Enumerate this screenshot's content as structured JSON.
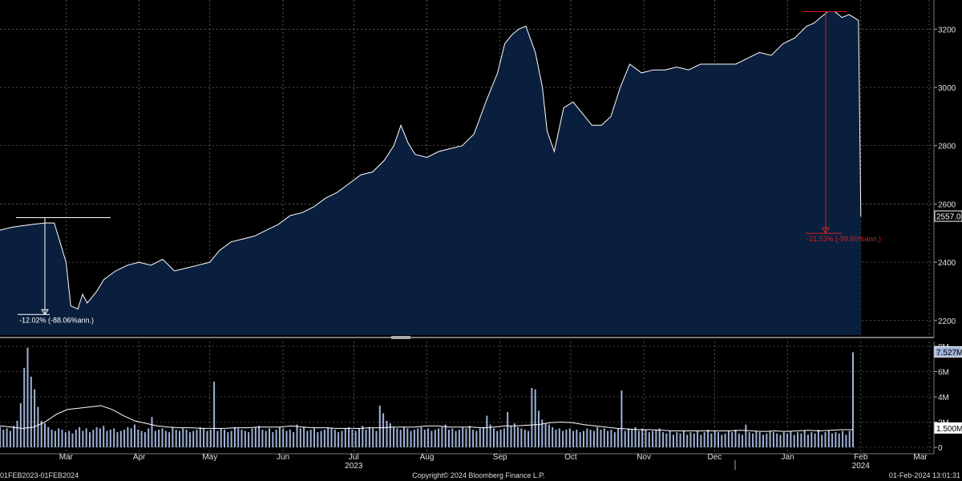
{
  "colors": {
    "background": "#000000",
    "area_fill": "#0a1f3d",
    "price_line": "#ffffff",
    "volume_bar": "#9fb2d8",
    "grid": "#8a8a8a",
    "axis_text": "#e0e0e0",
    "drawdown_red": "#d42020",
    "drawdown_white": "#ffffff"
  },
  "footer": {
    "range": "01FEB2023-01FEB2024",
    "copyright": "Copyright© 2024 Bloomberg Finance L.P.",
    "timestamp": "01-Feb-2024 13:01:31"
  },
  "chart_data": [
    {
      "type": "area",
      "ylim": [
        2150,
        3300
      ],
      "y_ticks": [
        "2200",
        "2400",
        "2600",
        "2800",
        "3000",
        "3200"
      ],
      "last_value_label": "2557.0",
      "x": [
        "2023-02-01",
        "2023-02-06",
        "2023-02-10",
        "2023-02-15",
        "2023-02-20",
        "2023-02-24",
        "2023-03-01",
        "2023-03-03",
        "2023-03-06",
        "2023-03-08",
        "2023-03-10",
        "2023-03-14",
        "2023-03-17",
        "2023-03-22",
        "2023-03-27",
        "2023-04-01",
        "2023-04-06",
        "2023-04-11",
        "2023-04-16",
        "2023-04-21",
        "2023-04-26",
        "2023-05-01",
        "2023-05-05",
        "2023-05-10",
        "2023-05-15",
        "2023-05-20",
        "2023-05-25",
        "2023-05-30",
        "2023-06-04",
        "2023-06-09",
        "2023-06-14",
        "2023-06-19",
        "2023-06-24",
        "2023-06-29",
        "2023-07-04",
        "2023-07-09",
        "2023-07-14",
        "2023-07-18",
        "2023-07-21",
        "2023-07-24",
        "2023-07-27",
        "2023-08-01",
        "2023-08-06",
        "2023-08-11",
        "2023-08-16",
        "2023-08-21",
        "2023-08-26",
        "2023-08-31",
        "2023-09-03",
        "2023-09-06",
        "2023-09-09",
        "2023-09-12",
        "2023-09-16",
        "2023-09-19",
        "2023-09-21",
        "2023-09-24",
        "2023-09-28",
        "2023-10-02",
        "2023-10-06",
        "2023-10-10",
        "2023-10-14",
        "2023-10-18",
        "2023-10-22",
        "2023-10-26",
        "2023-10-31",
        "2023-11-05",
        "2023-11-10",
        "2023-11-15",
        "2023-11-20",
        "2023-11-25",
        "2023-11-30",
        "2023-12-05",
        "2023-12-10",
        "2023-12-15",
        "2023-12-20",
        "2023-12-25",
        "2023-12-30",
        "2024-01-04",
        "2024-01-09",
        "2024-01-12",
        "2024-01-15",
        "2024-01-18",
        "2024-01-21",
        "2024-01-24",
        "2024-01-27",
        "2024-01-31",
        "2024-02-01"
      ],
      "values": [
        2510,
        2520,
        2525,
        2530,
        2535,
        2535,
        2400,
        2250,
        2240,
        2290,
        2260,
        2300,
        2340,
        2370,
        2390,
        2400,
        2390,
        2410,
        2370,
        2380,
        2390,
        2400,
        2440,
        2470,
        2480,
        2490,
        2510,
        2530,
        2560,
        2570,
        2590,
        2620,
        2640,
        2670,
        2700,
        2710,
        2750,
        2800,
        2870,
        2810,
        2770,
        2760,
        2780,
        2790,
        2800,
        2840,
        2950,
        3050,
        3150,
        3180,
        3200,
        3210,
        3120,
        3000,
        2850,
        2780,
        2930,
        2950,
        2910,
        2870,
        2870,
        2900,
        3000,
        3080,
        3050,
        3060,
        3060,
        3070,
        3060,
        3080,
        3080,
        3080,
        3080,
        3100,
        3120,
        3110,
        3150,
        3170,
        3210,
        3220,
        3240,
        3260,
        3260,
        3240,
        3250,
        3230,
        2557
      ]
    },
    {
      "type": "bar",
      "ylim": [
        0,
        8
      ],
      "y_ticks": [
        "8M",
        "6M",
        "4M",
        "2M",
        "0"
      ],
      "series": [
        {
          "values": [
            1.6,
            1.4,
            1.5,
            1.3,
            1.7,
            2.1,
            3.5,
            6.3,
            7.9,
            5.6,
            4.6,
            3.2,
            2.1,
            1.9,
            1.6,
            1.4,
            1.3,
            1.5,
            1.4,
            1.2,
            1.3,
            1.1,
            1.4,
            1.6,
            1.3,
            1.5,
            1.2,
            1.4,
            1.6,
            1.5,
            1.7,
            1.3,
            1.4,
            1.5,
            1.2,
            1.3,
            1.4,
            1.6,
            1.5,
            1.8,
            1.4,
            1.3,
            1.2,
            1.5,
            2.4,
            1.3,
            1.4,
            1.5,
            1.3,
            1.2,
            1.6,
            1.4,
            1.3,
            1.5,
            1.4,
            1.2,
            1.3,
            1.4,
            1.6,
            1.5,
            1.3,
            1.4,
            5.2,
            1.3,
            1.5,
            1.4,
            1.2,
            1.3,
            1.6,
            1.5,
            1.4,
            1.3,
            1.2,
            1.5,
            1.6,
            1.7,
            1.4,
            1.3,
            1.5,
            1.2,
            1.4,
            1.6,
            1.5,
            1.3,
            1.4,
            1.2,
            1.8,
            1.5,
            1.6,
            1.3,
            1.4,
            1.5,
            1.2,
            1.3,
            1.4,
            1.6,
            1.5,
            1.4,
            1.2,
            1.3,
            1.5,
            1.6,
            1.4,
            1.3,
            1.5,
            1.7,
            1.4,
            1.6,
            1.5,
            1.3,
            3.3,
            2.7,
            2.1,
            1.9,
            1.6,
            1.5,
            1.4,
            1.6,
            1.5,
            1.3,
            1.4,
            1.5,
            1.6,
            1.4,
            1.5,
            1.3,
            1.4,
            1.5,
            1.6,
            1.8,
            1.4,
            1.5,
            1.3,
            1.4,
            1.6,
            1.5,
            1.7,
            1.4,
            1.3,
            1.5,
            1.6,
            2.5,
            1.8,
            1.5,
            1.3,
            1.4,
            1.5,
            2.8,
            1.7,
            1.9,
            1.6,
            1.5,
            1.4,
            1.3,
            4.7,
            4.6,
            2.9,
            2.2,
            1.9,
            1.8,
            1.6,
            1.4,
            1.5,
            1.3,
            1.4,
            1.5,
            1.3,
            1.4,
            1.2,
            1.3,
            1.5,
            1.4,
            1.3,
            1.6,
            1.4,
            1.5,
            1.3,
            1.4,
            1.2,
            1.5,
            4.5,
            1.3,
            1.5,
            1.4,
            1.6,
            1.3,
            1.5,
            1.4,
            1.2,
            1.3,
            1.4,
            1.5,
            1.2,
            1.1,
            1.3,
            1.0,
            1.2,
            1.1,
            1.3,
            1.0,
            1.2,
            1.1,
            1.3,
            1.0,
            1.2,
            1.4,
            1.1,
            1.3,
            1.2,
            1.0,
            1.1,
            1.3,
            1.2,
            1.4,
            1.1,
            1.0,
            1.8,
            1.2,
            1.1,
            1.3,
            1.2,
            1.0,
            1.1,
            1.3,
            1.2,
            1.1,
            1.0,
            1.2,
            1.1,
            1.3,
            1.0,
            1.2,
            1.1,
            1.3,
            1.0,
            1.2,
            1.1,
            1.4,
            1.0,
            1.2,
            1.3,
            1.1,
            1.2,
            1.1,
            1.3,
            1.0,
            1.3,
            7.53
          ]
        }
      ],
      "moving_average": [
        1.7,
        1.6,
        1.5,
        1.6,
        2.0,
        2.6,
        3.0,
        3.1,
        3.2,
        3.3,
        3.0,
        2.5,
        2.1,
        1.9,
        1.7,
        1.6,
        1.55,
        1.55,
        1.5,
        1.5,
        1.5,
        1.55,
        1.55,
        1.6,
        1.6,
        1.6,
        1.7,
        1.6,
        1.55,
        1.55,
        1.5,
        1.5,
        1.5,
        1.55,
        1.55,
        1.6,
        1.6,
        1.6,
        1.7,
        1.7,
        1.6,
        1.6,
        1.6,
        1.55,
        1.6,
        1.7,
        1.7,
        1.75,
        1.8,
        1.95,
        2.0,
        1.95,
        1.8,
        1.7,
        1.6,
        1.5,
        1.45,
        1.4,
        1.4,
        1.35,
        1.3,
        1.3,
        1.3,
        1.3,
        1.3,
        1.3,
        1.35,
        1.3,
        1.25,
        1.3,
        1.25,
        1.3,
        1.35,
        1.3,
        1.35,
        1.4,
        1.4
      ],
      "last_value_label": "7.527M",
      "ma_value_label": "1.500M"
    }
  ],
  "x_axis": {
    "months": [
      "Mar",
      "Apr",
      "May",
      "Jun",
      "Jul",
      "Aug",
      "Sep",
      "Oct",
      "Nov",
      "Dec",
      "Jan",
      "Feb",
      "Mar"
    ],
    "month_dates": [
      "2023-03-01",
      "2023-04-01",
      "2023-05-01",
      "2023-06-01",
      "2023-07-01",
      "2023-08-01",
      "2023-09-01",
      "2023-10-01",
      "2023-11-01",
      "2023-12-01",
      "2024-01-01",
      "2024-02-01",
      "2024-03-01"
    ],
    "years": [
      {
        "label": "2023",
        "date": "2023-07-01"
      },
      {
        "label": "2024",
        "date": "2024-02-01"
      }
    ]
  },
  "annotations": {
    "drawdown_left": {
      "label": "-12.02% (-88.06%ann.)",
      "from_value": 2553,
      "to_value": 2240,
      "from_date": "2023-02-01",
      "to_date": "2023-03-09"
    },
    "drawdown_right": {
      "label": "-21.53% (-99.60%ann.)",
      "from_value": 3260,
      "to_value": 2557,
      "from_date": "2024-01-26",
      "to_date": "2024-02-05"
    }
  }
}
